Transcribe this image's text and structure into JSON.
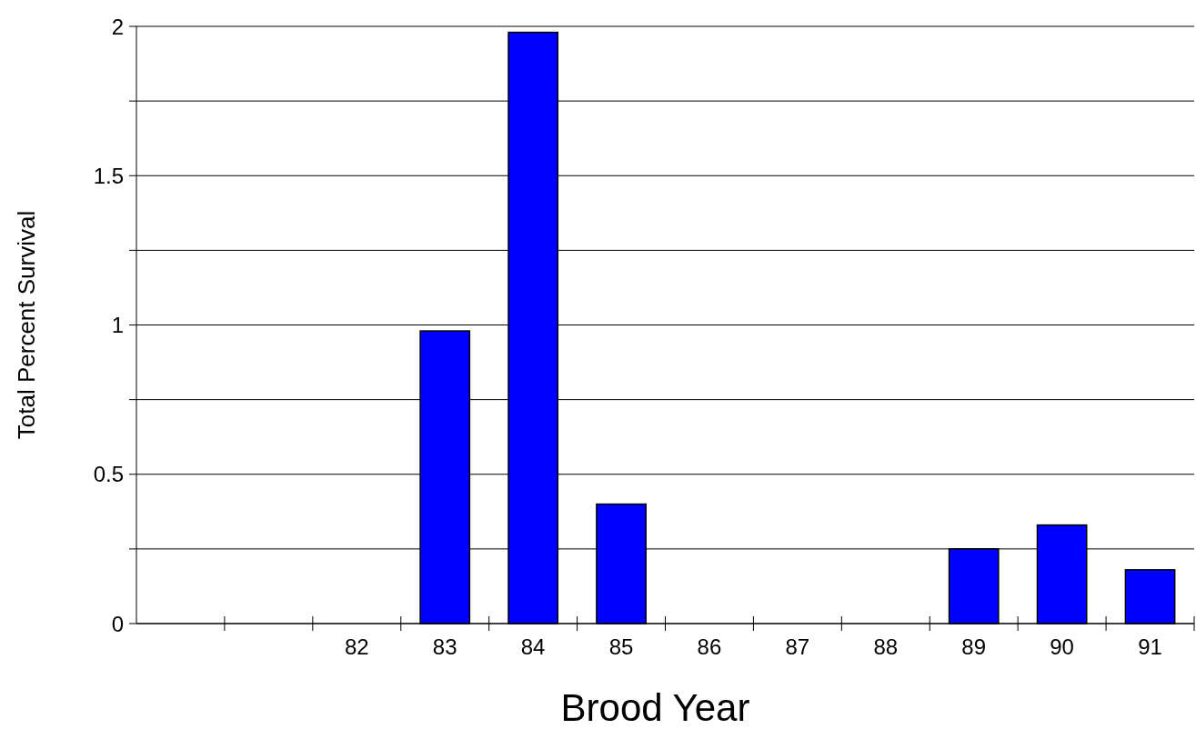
{
  "chart_data": {
    "type": "bar",
    "xlabel": "Brood Year",
    "ylabel": "Total Percent Survival",
    "categories": [
      null,
      null,
      "82",
      "83",
      "84",
      "85",
      "86",
      "87",
      "88",
      "89",
      "90",
      "91"
    ],
    "values": [
      0,
      0,
      0,
      0.98,
      1.98,
      0.4,
      0,
      0,
      0,
      0.25,
      0.33,
      0.18
    ],
    "color": "#0000ff",
    "ylim": [
      0,
      2
    ],
    "yticks": [
      0,
      {
        "value": 0.25,
        "label": null
      },
      0.5,
      {
        "value": 0.75,
        "label": null
      },
      1,
      {
        "value": 1.25,
        "label": null
      },
      1.5,
      {
        "value": 1.75,
        "label": null
      },
      2
    ],
    "grid": "y"
  }
}
